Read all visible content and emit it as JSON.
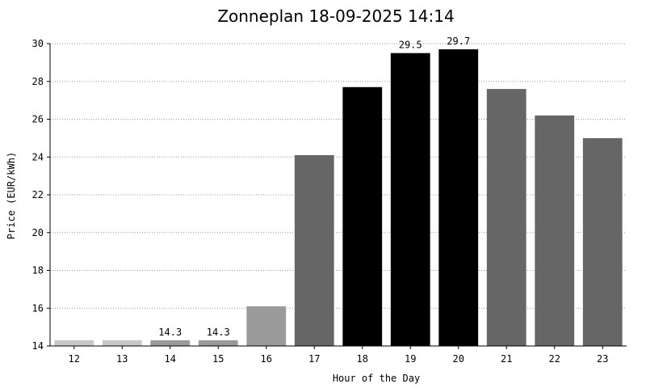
{
  "chart_data": {
    "type": "bar",
    "title": "Zonneplan 18-09-2025 14:14",
    "xlabel": "Hour of the Day",
    "ylabel": "Price (EUR/kWh)",
    "ylim": [
      14,
      30
    ],
    "yticks": [
      14,
      16,
      18,
      20,
      22,
      24,
      26,
      28,
      30
    ],
    "grid": true,
    "categories": [
      "12",
      "13",
      "14",
      "15",
      "16",
      "17",
      "18",
      "19",
      "20",
      "21",
      "22",
      "23"
    ],
    "values": [
      14.3,
      14.3,
      14.3,
      14.3,
      16.1,
      24.1,
      27.7,
      29.5,
      29.7,
      27.6,
      26.2,
      25.0
    ],
    "bar_colors": [
      "#c8c8c8",
      "#c8c8c8",
      "#9a9a9a",
      "#9a9a9a",
      "#9a9a9a",
      "#666666",
      "#000000",
      "#000000",
      "#000000",
      "#666666",
      "#666666",
      "#666666"
    ],
    "annotations": [
      {
        "category": "14",
        "text": "14.3"
      },
      {
        "category": "15",
        "text": "14.3"
      },
      {
        "category": "19",
        "text": "29.5"
      },
      {
        "category": "20",
        "text": "29.7"
      }
    ]
  }
}
